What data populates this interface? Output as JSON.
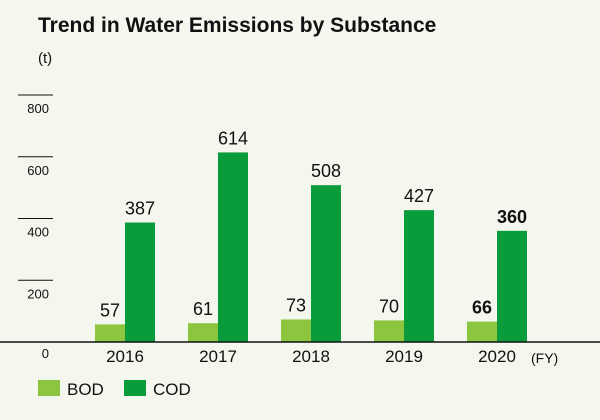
{
  "chart_data": {
    "type": "bar",
    "title": "Trend in Water Emissions by Substance",
    "unit": "(t)",
    "x_suffix": "(FY)",
    "categories": [
      "2016",
      "2017",
      "2018",
      "2019",
      "2020"
    ],
    "series": [
      {
        "name": "BOD",
        "color": "#8cc63f",
        "values": [
          57,
          61,
          73,
          70,
          66
        ]
      },
      {
        "name": "COD",
        "color": "#0a9b3a",
        "values": [
          387,
          614,
          508,
          427,
          360
        ]
      }
    ],
    "ylim": [
      0,
      800
    ],
    "yticks": [
      0,
      200,
      400,
      600,
      800
    ],
    "highlight_category": "2020",
    "legend": "bottom-left"
  }
}
